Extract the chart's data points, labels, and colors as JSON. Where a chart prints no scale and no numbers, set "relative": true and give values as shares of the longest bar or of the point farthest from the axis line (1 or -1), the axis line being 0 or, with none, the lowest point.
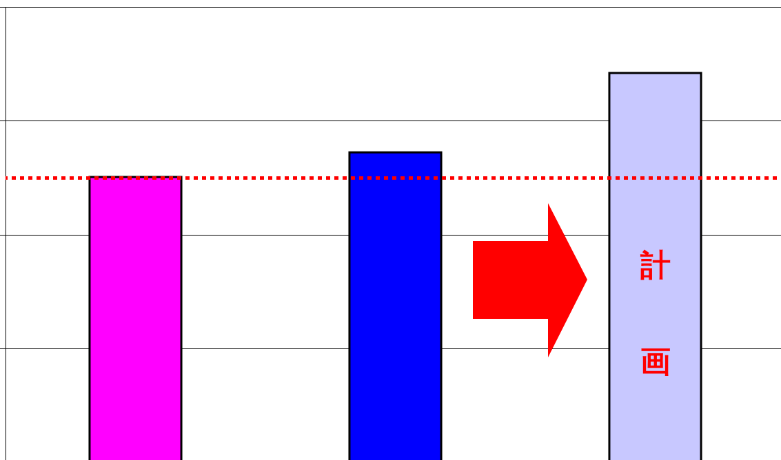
{
  "chart_data": {
    "type": "bar",
    "relative": true,
    "categories": [
      null,
      null,
      null
    ],
    "values": [
      0.733,
      0.796,
      1
    ],
    "colors": [
      "#ff00ff",
      "#0000ff",
      "#c8c8ff"
    ],
    "grid": "y",
    "ref_lines": [
      {
        "axis": "y",
        "value": 0.73,
        "color": "#ff0000",
        "line_style": "dotted"
      }
    ],
    "annotations": [
      "計画"
    ]
  }
}
